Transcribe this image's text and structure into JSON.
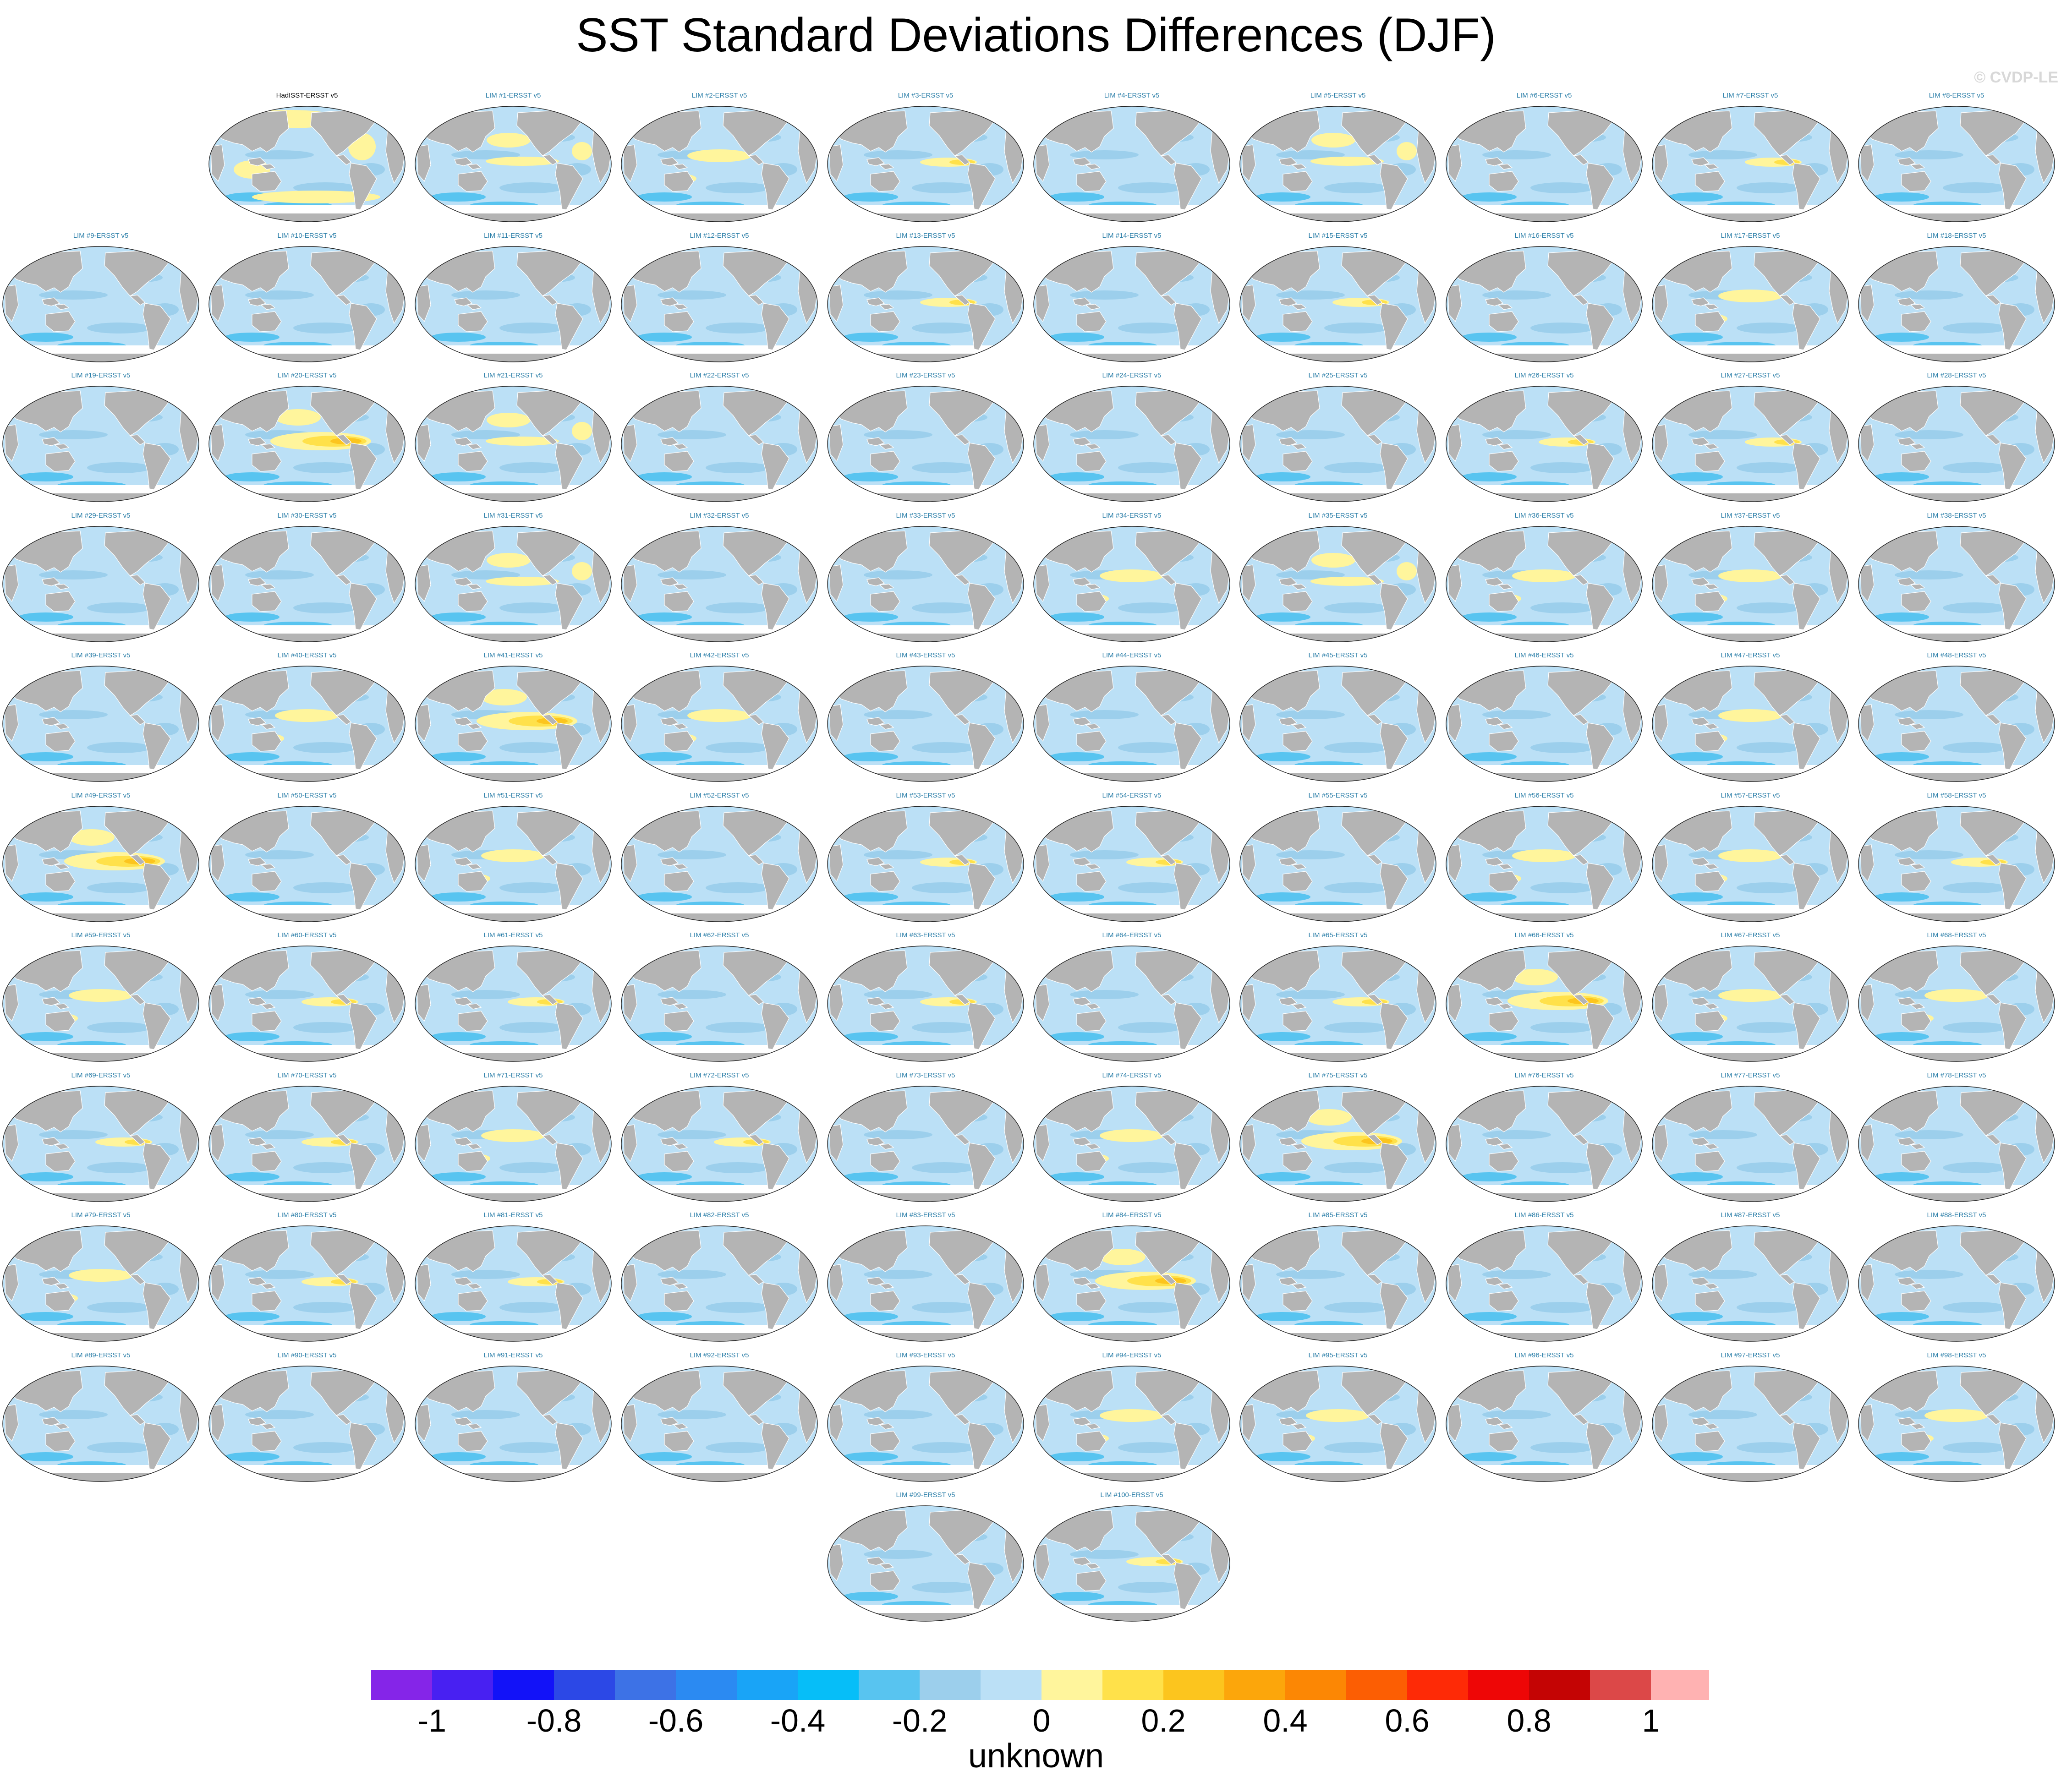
{
  "title": "SST Standard Deviations Differences (DJF)",
  "watermark": "© CVDP-LE",
  "chart_data": {
    "type": "heatmap",
    "title": "SST Standard Deviations Differences (DJF)",
    "projection": "robinson (pacific-centered global map)",
    "panel_count": 101,
    "panels": [
      {
        "label": "HadISST-ERSST v5",
        "kind": "observations",
        "pattern": "mixed"
      },
      {
        "label": "LIM #1-ERSST v5",
        "pattern": "tropical-pacific-positive"
      },
      {
        "label": "LIM #2-ERSST v5",
        "pattern": "central-pacific-positive"
      },
      {
        "label": "LIM #3-ERSST v5",
        "pattern": "east-pacific-positive"
      },
      {
        "label": "LIM #4-ERSST v5",
        "pattern": "mostly-negative"
      },
      {
        "label": "LIM #5-ERSST v5",
        "pattern": "tropical-pacific-positive"
      },
      {
        "label": "LIM #6-ERSST v5",
        "pattern": "mostly-negative"
      },
      {
        "label": "LIM #7-ERSST v5",
        "pattern": "east-pacific-positive"
      },
      {
        "label": "LIM #8-ERSST v5",
        "pattern": "mostly-negative"
      },
      {
        "label": "LIM #9-ERSST v5",
        "pattern": "mostly-negative"
      },
      {
        "label": "LIM #10-ERSST v5",
        "pattern": "mostly-negative"
      },
      {
        "label": "LIM #11-ERSST v5",
        "pattern": "mostly-negative"
      },
      {
        "label": "LIM #12-ERSST v5",
        "pattern": "mostly-negative"
      },
      {
        "label": "LIM #13-ERSST v5",
        "pattern": "east-pacific-positive"
      },
      {
        "label": "LIM #14-ERSST v5",
        "pattern": "mostly-negative"
      },
      {
        "label": "LIM #15-ERSST v5",
        "pattern": "east-pacific-positive"
      },
      {
        "label": "LIM #16-ERSST v5",
        "pattern": "mostly-negative"
      },
      {
        "label": "LIM #17-ERSST v5",
        "pattern": "central-pacific-positive"
      },
      {
        "label": "LIM #18-ERSST v5",
        "pattern": "mostly-negative"
      },
      {
        "label": "LIM #19-ERSST v5",
        "pattern": "mostly-negative"
      },
      {
        "label": "LIM #20-ERSST v5",
        "pattern": "east-pacific-strong"
      },
      {
        "label": "LIM #21-ERSST v5",
        "pattern": "tropical-pacific-positive"
      },
      {
        "label": "LIM #22-ERSST v5",
        "pattern": "mostly-negative"
      },
      {
        "label": "LIM #23-ERSST v5",
        "pattern": "mostly-negative"
      },
      {
        "label": "LIM #24-ERSST v5",
        "pattern": "mostly-negative"
      },
      {
        "label": "LIM #25-ERSST v5",
        "pattern": "mostly-negative"
      },
      {
        "label": "LIM #26-ERSST v5",
        "pattern": "east-pacific-positive"
      },
      {
        "label": "LIM #27-ERSST v5",
        "pattern": "east-pacific-positive"
      },
      {
        "label": "LIM #28-ERSST v5",
        "pattern": "mostly-negative"
      },
      {
        "label": "LIM #29-ERSST v5",
        "pattern": "mostly-negative"
      },
      {
        "label": "LIM #30-ERSST v5",
        "pattern": "mostly-negative"
      },
      {
        "label": "LIM #31-ERSST v5",
        "pattern": "tropical-pacific-positive"
      },
      {
        "label": "LIM #32-ERSST v5",
        "pattern": "mostly-negative"
      },
      {
        "label": "LIM #33-ERSST v5",
        "pattern": "mostly-negative"
      },
      {
        "label": "LIM #34-ERSST v5",
        "pattern": "central-pacific-positive"
      },
      {
        "label": "LIM #35-ERSST v5",
        "pattern": "tropical-pacific-positive"
      },
      {
        "label": "LIM #36-ERSST v5",
        "pattern": "central-pacific-positive"
      },
      {
        "label": "LIM #37-ERSST v5",
        "pattern": "central-pacific-positive"
      },
      {
        "label": "LIM #38-ERSST v5",
        "pattern": "mostly-negative"
      },
      {
        "label": "LIM #39-ERSST v5",
        "pattern": "mostly-negative"
      },
      {
        "label": "LIM #40-ERSST v5",
        "pattern": "central-pacific-positive"
      },
      {
        "label": "LIM #41-ERSST v5",
        "pattern": "east-pacific-strong"
      },
      {
        "label": "LIM #42-ERSST v5",
        "pattern": "central-pacific-positive"
      },
      {
        "label": "LIM #43-ERSST v5",
        "pattern": "mostly-negative"
      },
      {
        "label": "LIM #44-ERSST v5",
        "pattern": "mostly-negative"
      },
      {
        "label": "LIM #45-ERSST v5",
        "pattern": "mostly-negative"
      },
      {
        "label": "LIM #46-ERSST v5",
        "pattern": "mostly-negative"
      },
      {
        "label": "LIM #47-ERSST v5",
        "pattern": "central-pacific-positive"
      },
      {
        "label": "LIM #48-ERSST v5",
        "pattern": "mostly-negative"
      },
      {
        "label": "LIM #49-ERSST v5",
        "pattern": "east-pacific-strong"
      },
      {
        "label": "LIM #50-ERSST v5",
        "pattern": "mostly-negative"
      },
      {
        "label": "LIM #51-ERSST v5",
        "pattern": "central-pacific-positive"
      },
      {
        "label": "LIM #52-ERSST v5",
        "pattern": "mostly-negative"
      },
      {
        "label": "LIM #53-ERSST v5",
        "pattern": "east-pacific-positive"
      },
      {
        "label": "LIM #54-ERSST v5",
        "pattern": "east-pacific-positive"
      },
      {
        "label": "LIM #55-ERSST v5",
        "pattern": "mostly-negative"
      },
      {
        "label": "LIM #56-ERSST v5",
        "pattern": "central-pacific-positive"
      },
      {
        "label": "LIM #57-ERSST v5",
        "pattern": "central-pacific-positive"
      },
      {
        "label": "LIM #58-ERSST v5",
        "pattern": "east-pacific-positive"
      },
      {
        "label": "LIM #59-ERSST v5",
        "pattern": "central-pacific-positive"
      },
      {
        "label": "LIM #60-ERSST v5",
        "pattern": "east-pacific-positive"
      },
      {
        "label": "LIM #61-ERSST v5",
        "pattern": "east-pacific-positive"
      },
      {
        "label": "LIM #62-ERSST v5",
        "pattern": "mostly-negative"
      },
      {
        "label": "LIM #63-ERSST v5",
        "pattern": "east-pacific-positive"
      },
      {
        "label": "LIM #64-ERSST v5",
        "pattern": "mostly-negative"
      },
      {
        "label": "LIM #65-ERSST v5",
        "pattern": "east-pacific-positive"
      },
      {
        "label": "LIM #66-ERSST v5",
        "pattern": "east-pacific-strong"
      },
      {
        "label": "LIM #67-ERSST v5",
        "pattern": "central-pacific-positive"
      },
      {
        "label": "LIM #68-ERSST v5",
        "pattern": "central-pacific-positive"
      },
      {
        "label": "LIM #69-ERSST v5",
        "pattern": "east-pacific-positive"
      },
      {
        "label": "LIM #70-ERSST v5",
        "pattern": "east-pacific-positive"
      },
      {
        "label": "LIM #71-ERSST v5",
        "pattern": "central-pacific-positive"
      },
      {
        "label": "LIM #72-ERSST v5",
        "pattern": "east-pacific-positive"
      },
      {
        "label": "LIM #73-ERSST v5",
        "pattern": "mostly-negative"
      },
      {
        "label": "LIM #74-ERSST v5",
        "pattern": "central-pacific-positive"
      },
      {
        "label": "LIM #75-ERSST v5",
        "pattern": "east-pacific-strong"
      },
      {
        "label": "LIM #76-ERSST v5",
        "pattern": "mostly-negative"
      },
      {
        "label": "LIM #77-ERSST v5",
        "pattern": "mostly-negative"
      },
      {
        "label": "LIM #78-ERSST v5",
        "pattern": "mostly-negative"
      },
      {
        "label": "LIM #79-ERSST v5",
        "pattern": "central-pacific-positive"
      },
      {
        "label": "LIM #80-ERSST v5",
        "pattern": "east-pacific-positive"
      },
      {
        "label": "LIM #81-ERSST v5",
        "pattern": "east-pacific-positive"
      },
      {
        "label": "LIM #82-ERSST v5",
        "pattern": "mostly-negative"
      },
      {
        "label": "LIM #83-ERSST v5",
        "pattern": "mostly-negative"
      },
      {
        "label": "LIM #84-ERSST v5",
        "pattern": "east-pacific-strong"
      },
      {
        "label": "LIM #85-ERSST v5",
        "pattern": "mostly-negative"
      },
      {
        "label": "LIM #86-ERSST v5",
        "pattern": "mostly-negative"
      },
      {
        "label": "LIM #87-ERSST v5",
        "pattern": "mostly-negative"
      },
      {
        "label": "LIM #88-ERSST v5",
        "pattern": "mostly-negative"
      },
      {
        "label": "LIM #89-ERSST v5",
        "pattern": "mostly-negative"
      },
      {
        "label": "LIM #90-ERSST v5",
        "pattern": "mostly-negative"
      },
      {
        "label": "LIM #91-ERSST v5",
        "pattern": "mostly-negative"
      },
      {
        "label": "LIM #92-ERSST v5",
        "pattern": "mostly-negative"
      },
      {
        "label": "LIM #93-ERSST v5",
        "pattern": "mostly-negative"
      },
      {
        "label": "LIM #94-ERSST v5",
        "pattern": "central-pacific-positive"
      },
      {
        "label": "LIM #95-ERSST v5",
        "pattern": "central-pacific-positive"
      },
      {
        "label": "LIM #96-ERSST v5",
        "pattern": "mostly-negative"
      },
      {
        "label": "LIM #97-ERSST v5",
        "pattern": "mostly-negative"
      },
      {
        "label": "LIM #98-ERSST v5",
        "pattern": "central-pacific-positive"
      },
      {
        "label": "LIM #99-ERSST v5",
        "pattern": "mostly-negative"
      },
      {
        "label": "LIM #100-ERSST v5",
        "pattern": "east-pacific-positive"
      }
    ],
    "colorbar": {
      "label": "unknown",
      "range": [
        -1.1,
        1.1
      ],
      "levels": [
        -1.1,
        -1.0,
        -0.9,
        -0.8,
        -0.7,
        -0.6,
        -0.5,
        -0.4,
        -0.3,
        -0.2,
        -0.1,
        0,
        0.1,
        0.2,
        0.3,
        0.4,
        0.5,
        0.6,
        0.7,
        0.8,
        0.9,
        1.0,
        1.1
      ],
      "colors": [
        "#8525e8",
        "#4820f2",
        "#1212f8",
        "#2c48e6",
        "#3d72e6",
        "#2b8af2",
        "#19a4f7",
        "#06bef8",
        "#58c4f0",
        "#9ccfec",
        "#bbe0f6",
        "#fff59c",
        "#ffe14a",
        "#fcc51e",
        "#fca60b",
        "#fc8704",
        "#fc5e03",
        "#fe2a06",
        "#ee0606",
        "#c40404",
        "#dc4848",
        "#ffb2b2"
      ],
      "ticks": [
        "-1",
        "-0.8",
        "-0.6",
        "-0.4",
        "-0.2",
        "0",
        "0.2",
        "0.4",
        "0.6",
        "0.8",
        "1"
      ],
      "tick_values": [
        -1,
        -0.8,
        -0.6,
        -0.4,
        -0.2,
        0,
        0.2,
        0.4,
        0.6,
        0.8,
        1
      ]
    }
  }
}
